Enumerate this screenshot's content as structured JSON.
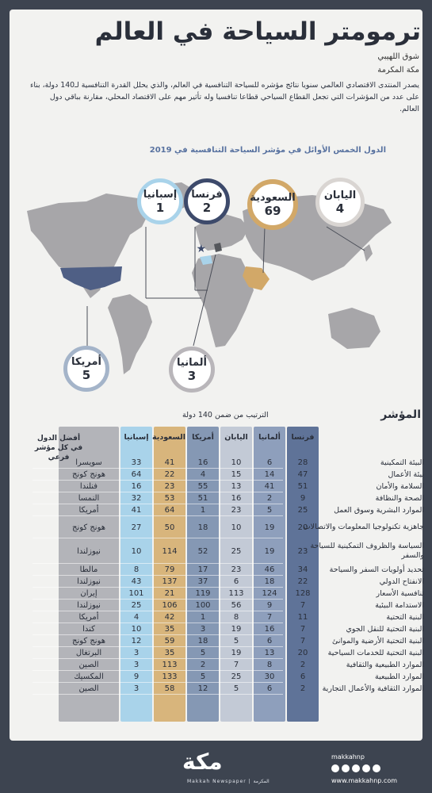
{
  "title": "ترمومتر السياحة في العالم",
  "author": "شوق اللهيبي",
  "place": "مكة المكرمة",
  "intro": "يصدر المنتدى الاقتصادي العالمي سنويا نتائج مؤشره للسياحة التنافسية في العالم، والذي يحلل القدرة التنافسية لـ140 دولة، بناء على عدد من المؤشرات التي تجعل القطاع السياحي قطاعا تنافسيا وله تأثير مهم على الاقتصاد المحلي، مقارنة بباقي دول العالم.",
  "subtitle": "الدول الخمس الأوائل في مؤشر السياحة التنافسية في 2019",
  "bubbles": [
    {
      "name": "إسبانيا",
      "value": "1",
      "color": "#a9d3ea"
    },
    {
      "name": "فرنسا",
      "value": "2",
      "color": "#3d4a6b"
    },
    {
      "name": "السعودية",
      "value": "69",
      "color": "#d2a868"
    },
    {
      "name": "اليابان",
      "value": "4",
      "color": "#d9d5d2"
    },
    {
      "name": "أمريكا",
      "value": "5",
      "color": "#a4b4c9"
    },
    {
      "name": "ألمانيا",
      "value": "3",
      "color": "#b9b6ba"
    }
  ],
  "table": {
    "indicator_label": "المؤشر",
    "rank_note": "الترتيب من ضمن 140 دولة",
    "best_label": "أفضل الدول في كل مؤشر فرعي",
    "columns": [
      "فرنسا",
      "ألمانيا",
      "اليابان",
      "أمريكا",
      "السعودية",
      "إسبانيا"
    ],
    "col_colors": [
      "#5f7398",
      "#8e9fbc",
      "#c3cad6",
      "#8598b4",
      "#d8b57c",
      "#a9d3ea"
    ],
    "rows": [
      {
        "name": "البيئة التمكينية",
        "v": [
          "28",
          "6",
          "10",
          "16",
          "41",
          "33"
        ],
        "best": "سويسرا"
      },
      {
        "name": "بيئة الأعمال",
        "v": [
          "47",
          "14",
          "15",
          "4",
          "22",
          "64"
        ],
        "best": "هونج كونج"
      },
      {
        "name": "السلامة والأمان",
        "v": [
          "51",
          "41",
          "13",
          "55",
          "23",
          "16"
        ],
        "best": "فنلندا"
      },
      {
        "name": "الصحة والنظافة",
        "v": [
          "9",
          "2",
          "16",
          "51",
          "53",
          "32"
        ],
        "best": "النمسا"
      },
      {
        "name": "الموارد البشرية وسوق العمل",
        "v": [
          "25",
          "5",
          "23",
          "1",
          "64",
          "41"
        ],
        "best": "أمريكا"
      },
      {
        "name": "جاهزية تكنولوجيا المعلومات والاتصالات",
        "v": [
          "20",
          "19",
          "10",
          "18",
          "50",
          "27"
        ],
        "best": "هونج كونج"
      },
      {
        "name": "السياسة والظروف التمكينية للسياحة والسفر",
        "v": [
          "23",
          "19",
          "25",
          "52",
          "114",
          "10"
        ],
        "best": "نيوزلندا"
      },
      {
        "name": "تحديد أولويات السفر والسياحة",
        "v": [
          "34",
          "46",
          "23",
          "17",
          "79",
          "8"
        ],
        "best": "مالطا"
      },
      {
        "name": "الانفتاح الدولي",
        "v": [
          "22",
          "18",
          "6",
          "37",
          "137",
          "43"
        ],
        "best": "نيوزلندا"
      },
      {
        "name": "تنافسية الأسعار",
        "v": [
          "128",
          "124",
          "113",
          "119",
          "21",
          "101"
        ],
        "best": "إيران"
      },
      {
        "name": "الاستدامة البيئية",
        "v": [
          "7",
          "9",
          "56",
          "100",
          "106",
          "25"
        ],
        "best": "نيوزلندا"
      },
      {
        "name": "البنية التحتية",
        "v": [
          "11",
          "7",
          "8",
          "1",
          "42",
          "4"
        ],
        "best": "أمريكا"
      },
      {
        "name": "البنية التحتية للنقل الجوي",
        "v": [
          "7",
          "16",
          "19",
          "3",
          "35",
          "10"
        ],
        "best": "كندا"
      },
      {
        "name": "البنية التحتية الأرضية والموانئ",
        "v": [
          "7",
          "6",
          "5",
          "18",
          "59",
          "12"
        ],
        "best": "هونج كونج"
      },
      {
        "name": "البنية التحتية للخدمات السياحية",
        "v": [
          "20",
          "13",
          "19",
          "5",
          "35",
          "3"
        ],
        "best": "البرتغال"
      },
      {
        "name": "الموارد الطبيعية والثقافية",
        "v": [
          "2",
          "8",
          "7",
          "2",
          "113",
          "3"
        ],
        "best": "الصين"
      },
      {
        "name": "الموارد الطبيعية",
        "v": [
          "6",
          "30",
          "25",
          "5",
          "133",
          "9"
        ],
        "best": "المكسيك"
      },
      {
        "name": "الموارد الثقافية والأعمال التجارية",
        "v": [
          "2",
          "6",
          "5",
          "12",
          "58",
          "3"
        ],
        "best": "الصين"
      }
    ]
  },
  "footer": {
    "logo": "مكة",
    "logo_sub": "Makkah Newspaper | المكرمة",
    "handle": "makkahnp",
    "site": "www.makkahnp.com"
  }
}
